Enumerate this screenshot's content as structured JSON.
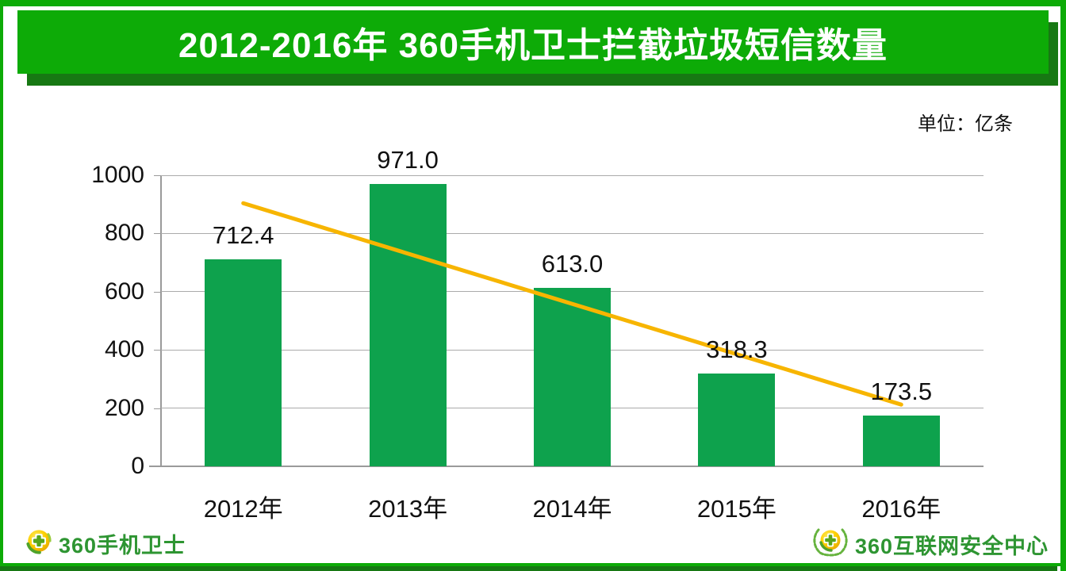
{
  "page": {
    "title": "2012-2016年 360手机卫士拦截垃圾短信数量",
    "unit_label": "单位：亿条"
  },
  "chart_data": {
    "type": "bar",
    "title": "2012-2016年 360手机卫士拦截垃圾短信数量",
    "unit": "亿条",
    "categories": [
      "2012年",
      "2013年",
      "2014年",
      "2015年",
      "2016年"
    ],
    "values": [
      712.4,
      971.0,
      613.0,
      318.3,
      173.5
    ],
    "data_labels": [
      "712.4",
      "971.0",
      "613.0",
      "318.3",
      "173.5"
    ],
    "xlabel": "",
    "ylabel": "",
    "ylim": [
      0,
      1000
    ],
    "yticks": [
      0,
      200,
      400,
      600,
      800,
      1000
    ],
    "grid": true,
    "legend": false,
    "trendline": {
      "type": "linear",
      "start_value": 904,
      "end_value": 212
    }
  },
  "footer": {
    "left_logo_text": "360手机卫士",
    "right_logo_text": "360互联网安全中心"
  },
  "colors": {
    "banner_green": "#0DAB07",
    "banner_shadow": "#177813",
    "frame_green": "#0DAB07",
    "bar_green": "#0EA24D",
    "trend_gold": "#F7B500",
    "grid_gray": "#ABABAB",
    "axis_gray": "#9A9A9A",
    "logo_green": "#2E9532",
    "label_black": "#111111"
  }
}
